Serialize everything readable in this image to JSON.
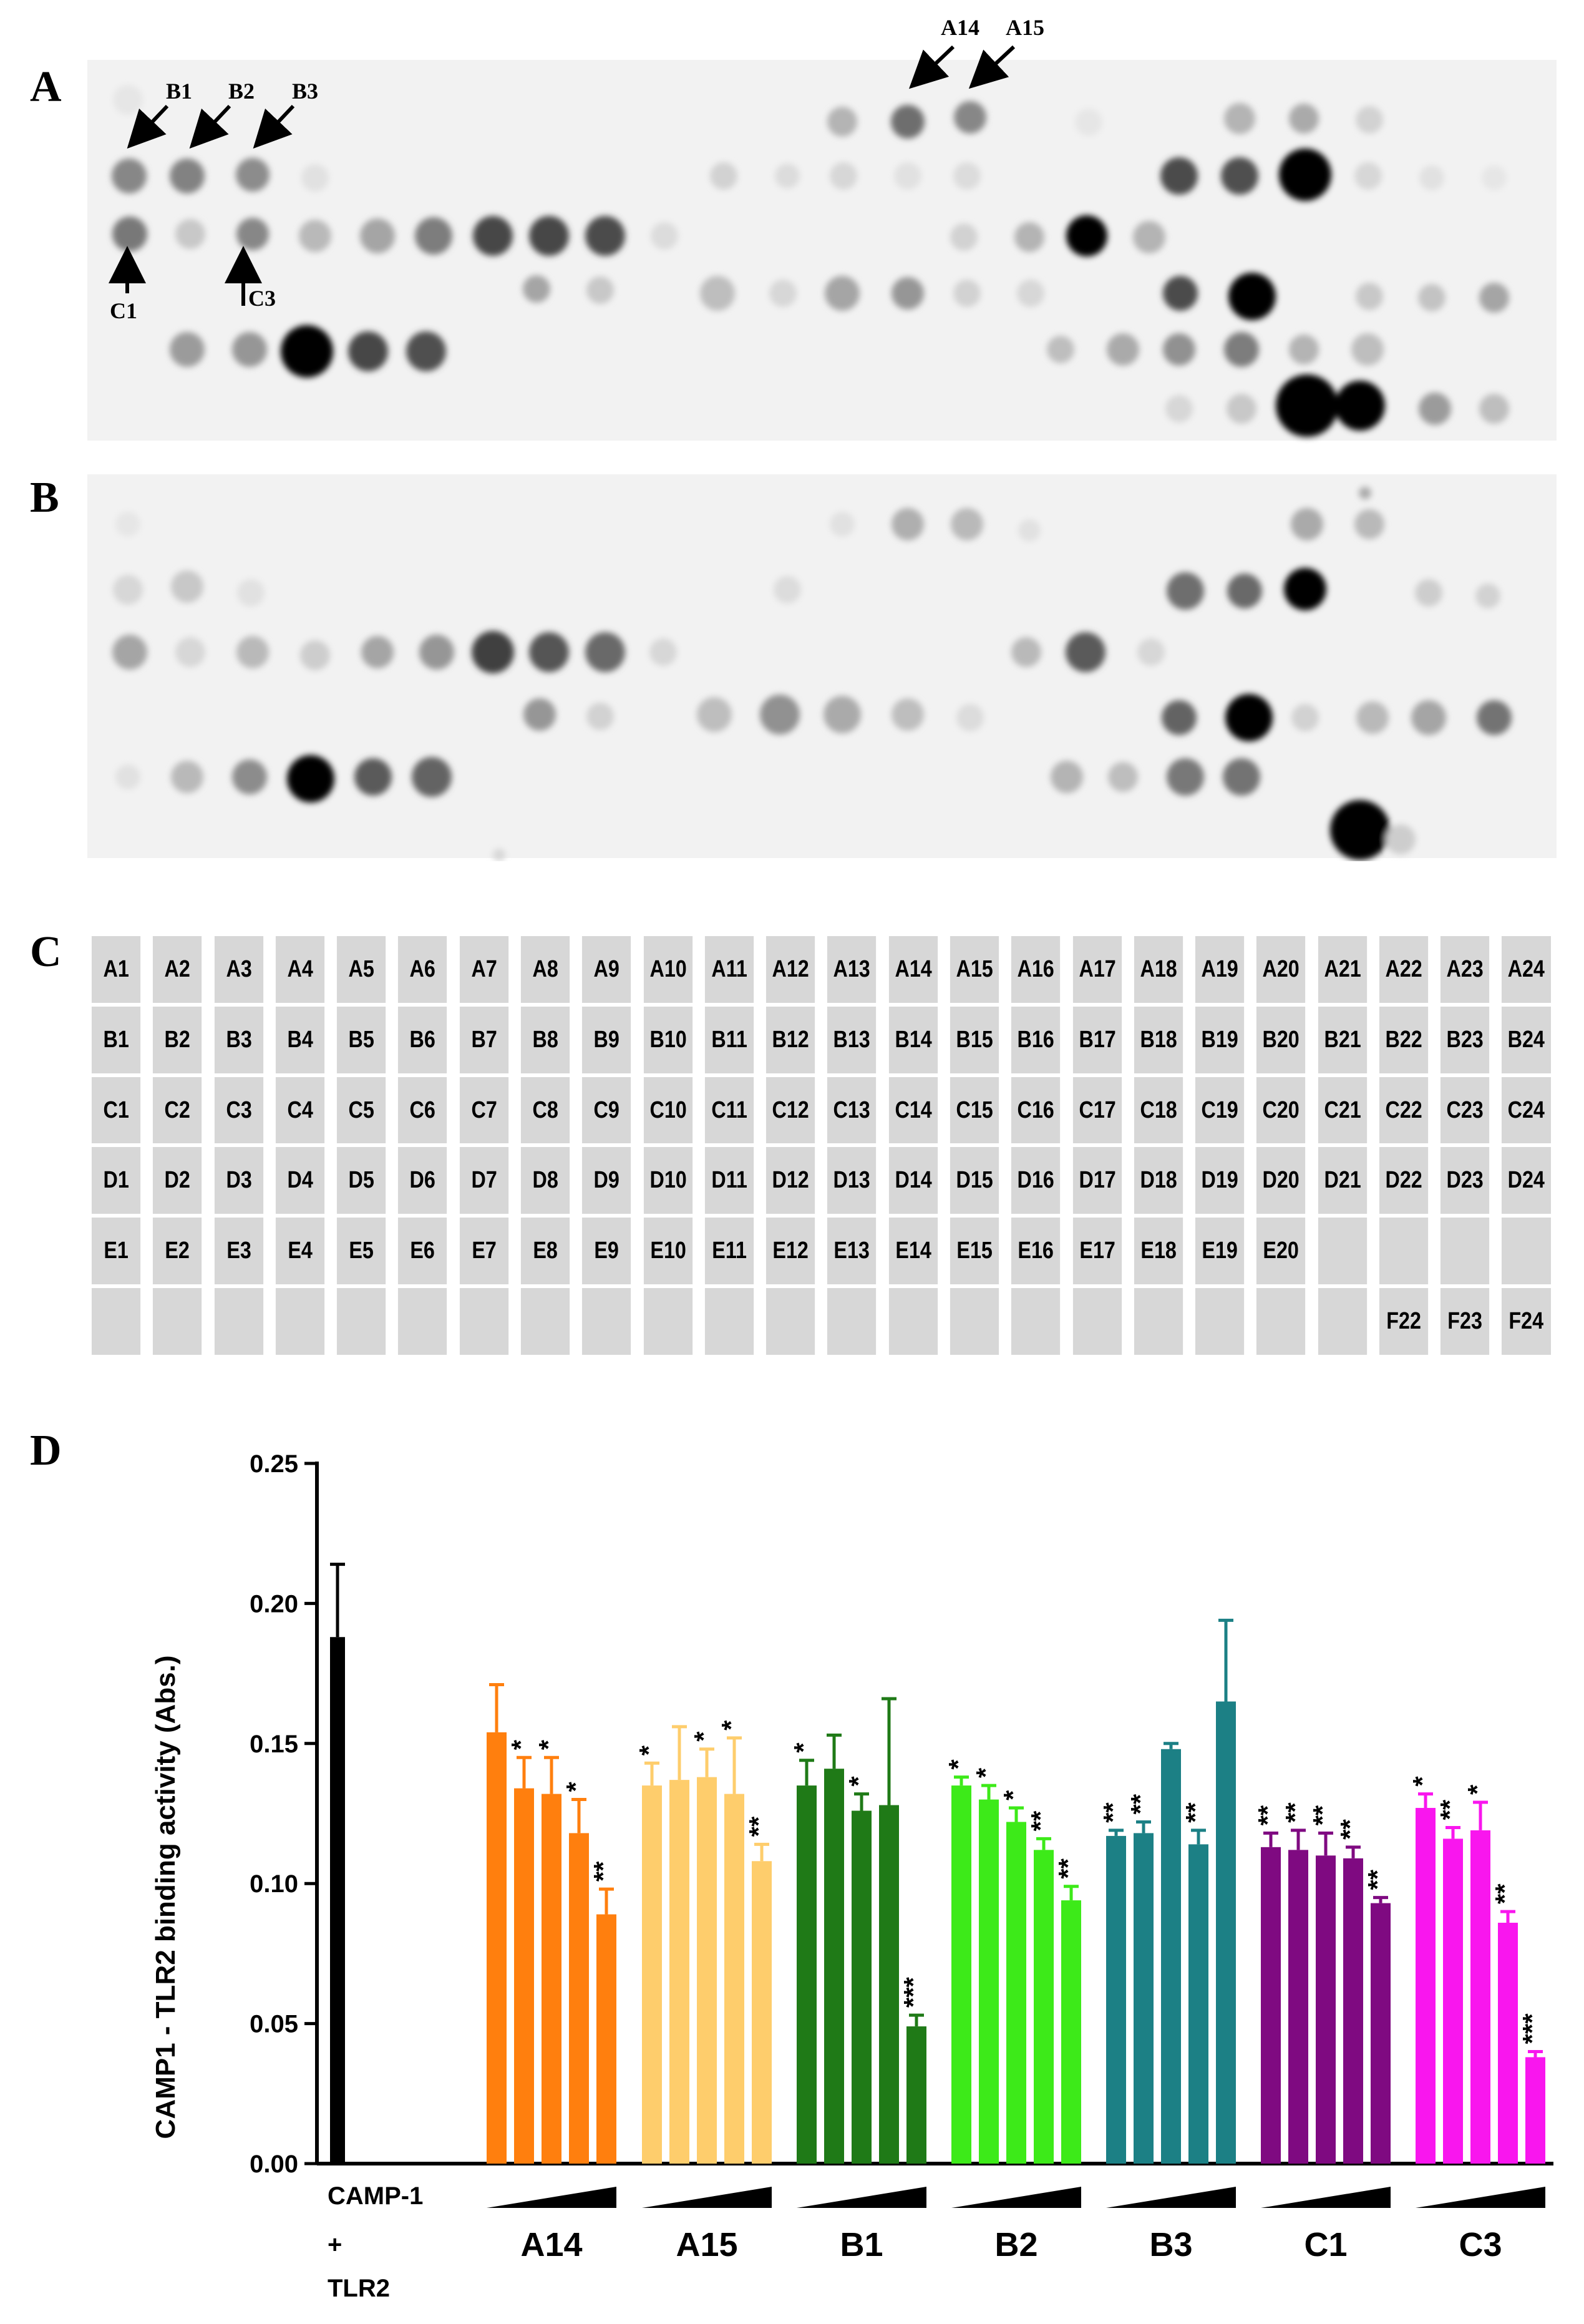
{
  "panels": {
    "a": "A",
    "b": "B",
    "c": "C",
    "d": "D"
  },
  "blot_a_labels": {
    "b1": "B1",
    "b2": "B2",
    "b3": "B3",
    "c1": "C1",
    "c3": "C3",
    "a14": "A14",
    "a15": "A15"
  },
  "grid_rows": [
    [
      "A1",
      "A2",
      "A3",
      "A4",
      "A5",
      "A6",
      "A7",
      "A8",
      "A9",
      "A10",
      "A11",
      "A12",
      "A13",
      "A14",
      "A15",
      "A16",
      "A17",
      "A18",
      "A19",
      "A20",
      "A21",
      "A22",
      "A23",
      "A24"
    ],
    [
      "B1",
      "B2",
      "B3",
      "B4",
      "B5",
      "B6",
      "B7",
      "B8",
      "B9",
      "B10",
      "B11",
      "B12",
      "B13",
      "B14",
      "B15",
      "B16",
      "B17",
      "B18",
      "B19",
      "B20",
      "B21",
      "B22",
      "B23",
      "B24"
    ],
    [
      "C1",
      "C2",
      "C3",
      "C4",
      "C5",
      "C6",
      "C7",
      "C8",
      "C9",
      "C10",
      "C11",
      "C12",
      "C13",
      "C14",
      "C15",
      "C16",
      "C17",
      "C18",
      "C19",
      "C20",
      "C21",
      "C22",
      "C23",
      "C24"
    ],
    [
      "D1",
      "D2",
      "D3",
      "D4",
      "D5",
      "D6",
      "D7",
      "D8",
      "D9",
      "D10",
      "D11",
      "D12",
      "D13",
      "D14",
      "D15",
      "D16",
      "D17",
      "D18",
      "D19",
      "D20",
      "D21",
      "D22",
      "D23",
      "D24"
    ],
    [
      "E1",
      "E2",
      "E3",
      "E4",
      "E5",
      "E6",
      "E7",
      "E8",
      "E9",
      "E10",
      "E11",
      "E12",
      "E13",
      "E14",
      "E15",
      "E16",
      "E17",
      "E18",
      "E19",
      "E20",
      "",
      "",
      "",
      ""
    ],
    [
      "",
      "",
      "",
      "",
      "",
      "",
      "",
      "",
      "",
      "",
      "",
      "",
      "",
      "",
      "",
      "",
      "",
      "",
      "",
      "",
      "",
      "F22",
      "F23",
      "F24"
    ]
  ],
  "chart_data": {
    "type": "bar",
    "ylabel": "CAMP1 - TLR2 binding activity (Abs.)",
    "ylim": [
      0,
      0.25
    ],
    "yticks": [
      "0.00",
      "0.05",
      "0.10",
      "0.15",
      "0.20",
      "0.25"
    ],
    "control": {
      "label_lines": [
        "CAMP-1",
        "+",
        "TLR2"
      ],
      "value": 0.188,
      "error": 0.026,
      "color": "#000000"
    },
    "series": [
      {
        "name": "A14",
        "color": "#ff7f0e",
        "values": [
          0.154,
          0.134,
          0.132,
          0.118,
          0.089
        ],
        "errors": [
          0.017,
          0.011,
          0.013,
          0.012,
          0.009
        ],
        "sig": [
          "",
          "*",
          "*",
          "*",
          "**"
        ]
      },
      {
        "name": "A15",
        "color": "#fecd6c",
        "values": [
          0.135,
          0.137,
          0.138,
          0.132,
          0.108
        ],
        "errors": [
          0.008,
          0.019,
          0.01,
          0.02,
          0.006
        ],
        "sig": [
          "*",
          "",
          "*",
          "*",
          "**"
        ]
      },
      {
        "name": "B1",
        "color": "#1f7a17",
        "values": [
          0.135,
          0.141,
          0.126,
          0.128,
          0.049
        ],
        "errors": [
          0.009,
          0.012,
          0.006,
          0.038,
          0.004
        ],
        "sig": [
          "*",
          "",
          "*",
          "",
          "***"
        ]
      },
      {
        "name": "B2",
        "color": "#3dea19",
        "values": [
          0.135,
          0.13,
          0.122,
          0.112,
          0.094
        ],
        "errors": [
          0.003,
          0.005,
          0.005,
          0.004,
          0.005
        ],
        "sig": [
          "*",
          "*",
          "*",
          "**",
          "**"
        ]
      },
      {
        "name": "B3",
        "color": "#1c8085",
        "values": [
          0.117,
          0.118,
          0.148,
          0.114,
          0.165
        ],
        "errors": [
          0.002,
          0.004,
          0.002,
          0.005,
          0.029
        ],
        "sig": [
          "**",
          "**",
          "",
          "**",
          ""
        ]
      },
      {
        "name": "C1",
        "color": "#7f0a81",
        "values": [
          0.113,
          0.112,
          0.11,
          0.109,
          0.093
        ],
        "errors": [
          0.005,
          0.007,
          0.008,
          0.004,
          0.002
        ],
        "sig": [
          "**",
          "**",
          "**",
          "**",
          "**"
        ]
      },
      {
        "name": "C3",
        "color": "#f916ee",
        "values": [
          0.127,
          0.116,
          0.119,
          0.086,
          0.038
        ],
        "errors": [
          0.005,
          0.004,
          0.01,
          0.004,
          0.002
        ],
        "sig": [
          "*",
          "**",
          "*",
          "**",
          "***"
        ]
      }
    ]
  }
}
